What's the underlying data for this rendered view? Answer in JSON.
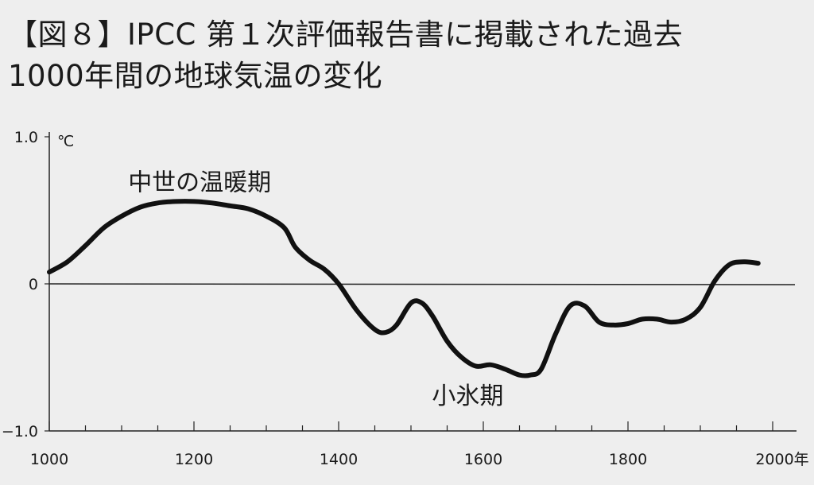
{
  "title_line1": "【図８】IPCC 第１次評価報告書に掲載された過去",
  "title_line2": "1000年間の地球気温の変化",
  "chart_data": {
    "type": "line",
    "title": "【図８】IPCC 第１次評価報告書に掲載された過去 1000年間の地球気温の変化",
    "ylabel": "℃",
    "xlabel": "",
    "xlim": [
      1000,
      2000
    ],
    "ylim": [
      -1.0,
      1.0
    ],
    "x_ticks": [
      1000,
      1200,
      1400,
      1600,
      1800,
      2000
    ],
    "x_tick_labels": [
      "1000",
      "1200",
      "1400",
      "1600",
      "1800",
      "2000年"
    ],
    "y_ticks": [
      1.0,
      0,
      -1.0
    ],
    "y_tick_labels": [
      "1.0",
      "0",
      "−1.0"
    ],
    "unit_label": "℃",
    "grid": false,
    "reference_line_y": 0,
    "annotations": [
      {
        "text": "中世の温暖期",
        "x": 1120,
        "y": 0.7
      },
      {
        "text": "小氷期",
        "x": 1540,
        "y": -0.75
      }
    ],
    "series": [
      {
        "x": [
          1000,
          1025,
          1050,
          1075,
          1100,
          1125,
          1150,
          1175,
          1200,
          1225,
          1250,
          1275,
          1300,
          1325,
          1340,
          1360,
          1380,
          1400,
          1425,
          1450,
          1465,
          1480,
          1500,
          1515,
          1530,
          1550,
          1570,
          1590,
          1610,
          1630,
          1650,
          1665,
          1680,
          1700,
          1720,
          1740,
          1760,
          1780,
          1800,
          1820,
          1840,
          1860,
          1880,
          1900,
          1920,
          1940,
          1960,
          1980
        ],
        "y": [
          0.08,
          0.15,
          0.26,
          0.38,
          0.46,
          0.52,
          0.55,
          0.56,
          0.56,
          0.55,
          0.53,
          0.51,
          0.46,
          0.38,
          0.25,
          0.16,
          0.1,
          0.0,
          -0.18,
          -0.31,
          -0.33,
          -0.28,
          -0.13,
          -0.13,
          -0.22,
          -0.39,
          -0.5,
          -0.56,
          -0.55,
          -0.58,
          -0.62,
          -0.62,
          -0.58,
          -0.34,
          -0.15,
          -0.15,
          -0.26,
          -0.28,
          -0.27,
          -0.24,
          -0.24,
          -0.26,
          -0.24,
          -0.16,
          0.02,
          0.13,
          0.15,
          0.14
        ]
      }
    ]
  }
}
